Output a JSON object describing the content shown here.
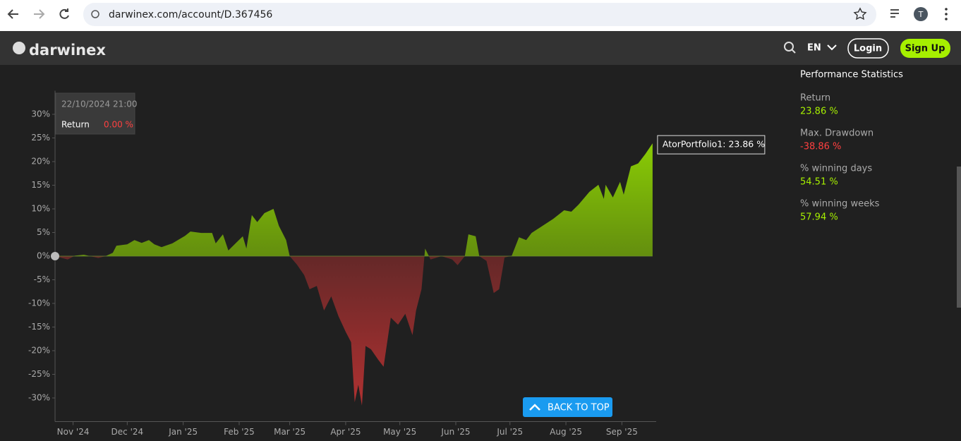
{
  "browser": {
    "url": "darwinex.com/account/D.367456",
    "profile": "T"
  },
  "header": {
    "logo": "darwinex",
    "language": "EN",
    "login": "Login",
    "signup": "Sign Up"
  },
  "chart_data": {
    "type": "area",
    "x": [
      "2024-10-22",
      "2024-10-29",
      "2024-11-02",
      "2024-11-07",
      "2024-11-15",
      "2024-11-19",
      "2024-11-23",
      "2024-11-25",
      "2024-12-01",
      "2024-12-05",
      "2024-12-09",
      "2024-12-13",
      "2024-12-16",
      "2024-12-20",
      "2024-12-26",
      "2025-01-02",
      "2025-01-05",
      "2025-01-11",
      "2025-01-17",
      "2025-01-19",
      "2025-01-23",
      "2025-01-26",
      "2025-01-30",
      "2025-02-03",
      "2025-02-05",
      "2025-02-08",
      "2025-02-11",
      "2025-02-15",
      "2025-02-20",
      "2025-02-23",
      "2025-02-27",
      "2025-03-01",
      "2025-03-05",
      "2025-03-09",
      "2025-03-12",
      "2025-03-16",
      "2025-03-20",
      "2025-03-24",
      "2025-03-28",
      "2025-04-01",
      "2025-04-04",
      "2025-04-06",
      "2025-04-08",
      "2025-04-10",
      "2025-04-12",
      "2025-04-15",
      "2025-04-19",
      "2025-04-22",
      "2025-04-26",
      "2025-04-30",
      "2025-05-04",
      "2025-05-08",
      "2025-05-10",
      "2025-05-13",
      "2025-05-15",
      "2025-05-18",
      "2025-05-24",
      "2025-05-30",
      "2025-06-02",
      "2025-06-06",
      "2025-06-08",
      "2025-06-12",
      "2025-06-14",
      "2025-06-18",
      "2025-06-22",
      "2025-06-25",
      "2025-06-28",
      "2025-07-02",
      "2025-07-06",
      "2025-07-10",
      "2025-07-13",
      "2025-07-19",
      "2025-07-25",
      "2025-07-31",
      "2025-08-04",
      "2025-08-08",
      "2025-08-14",
      "2025-08-19",
      "2025-08-22",
      "2025-08-23",
      "2025-08-27",
      "2025-08-31",
      "2025-09-02",
      "2025-09-06",
      "2025-09-10",
      "2025-09-14",
      "2025-09-18"
    ],
    "values": [
      0,
      -0.7,
      0.1,
      0.3,
      -0.4,
      0,
      0.7,
      2.2,
      2.5,
      3.4,
      2.8,
      3.4,
      2.5,
      1.9,
      2.7,
      4.3,
      5.2,
      4.9,
      4.9,
      2.7,
      4.6,
      1.2,
      2.7,
      4.2,
      1.6,
      8.7,
      7.2,
      9.1,
      10,
      6.4,
      3.4,
      0,
      -1.8,
      -4,
      -7,
      -6.3,
      -11.5,
      -8.5,
      -12.7,
      -16,
      -18.2,
      -30.9,
      -27.2,
      -31.6,
      -19,
      -19.7,
      -21.9,
      -23.4,
      -13,
      -14.5,
      -12.2,
      -16.7,
      -11.5,
      -7,
      1.6,
      -0.7,
      0,
      -0.7,
      -1.9,
      0,
      4.6,
      4.2,
      0,
      -1,
      -7.8,
      -7,
      -0.3,
      0.1,
      4,
      3.4,
      4.9,
      6.4,
      7.9,
      9.7,
      9.4,
      10.9,
      13.6,
      15.1,
      12.1,
      15.1,
      12.4,
      15.7,
      13,
      19,
      19.6,
      21.6,
      23.86
    ],
    "positive_color": "#9be800",
    "negative_color": "#b83232",
    "xlim": [
      "2024-10-22",
      "2025-09-20"
    ],
    "xticks": [
      {
        "value": "2024-11-01",
        "label": "Nov '24"
      },
      {
        "value": "2024-12-01",
        "label": "Dec '24"
      },
      {
        "value": "2025-01-01",
        "label": "Jan '25"
      },
      {
        "value": "2025-02-01",
        "label": "Feb '25"
      },
      {
        "value": "2025-03-01",
        "label": "Mar '25"
      },
      {
        "value": "2025-04-01",
        "label": "Apr '25"
      },
      {
        "value": "2025-05-01",
        "label": "May '25"
      },
      {
        "value": "2025-06-01",
        "label": "Jun '25"
      },
      {
        "value": "2025-07-01",
        "label": "Jul '25"
      },
      {
        "value": "2025-08-01",
        "label": "Aug '25"
      },
      {
        "value": "2025-09-01",
        "label": "Sep '25"
      }
    ],
    "ylim": [
      -35,
      35
    ],
    "yticks": [
      {
        "value": 30,
        "label": "30%"
      },
      {
        "value": 25,
        "label": "25%"
      },
      {
        "value": 20,
        "label": "20%"
      },
      {
        "value": 15,
        "label": "15%"
      },
      {
        "value": 10,
        "label": "10%"
      },
      {
        "value": 5,
        "label": "5%"
      },
      {
        "value": 0,
        "label": "0%"
      },
      {
        "value": -5,
        "label": "-5%"
      },
      {
        "value": -10,
        "label": "-10%"
      },
      {
        "value": -15,
        "label": "-15%"
      },
      {
        "value": -20,
        "label": "-20%"
      },
      {
        "value": -25,
        "label": "-25%"
      },
      {
        "value": -30,
        "label": "-30%"
      }
    ],
    "tooltip": {
      "date": "22/10/2024 21:00",
      "label": "Return",
      "value": "0.00 %"
    },
    "annotation": "AtorPortfolio1: 23.86 %"
  },
  "stats": {
    "title": "Performance Statistics",
    "items": [
      {
        "label": "Return",
        "value": "23.86 %"
      },
      {
        "label": "Max. Drawdown",
        "value": "-38.86 %"
      },
      {
        "label": "% winning days",
        "value": "54.51 %"
      },
      {
        "label": "% winning weeks",
        "value": "57.94 %"
      }
    ]
  },
  "back_to_top": "BACK TO TOP"
}
